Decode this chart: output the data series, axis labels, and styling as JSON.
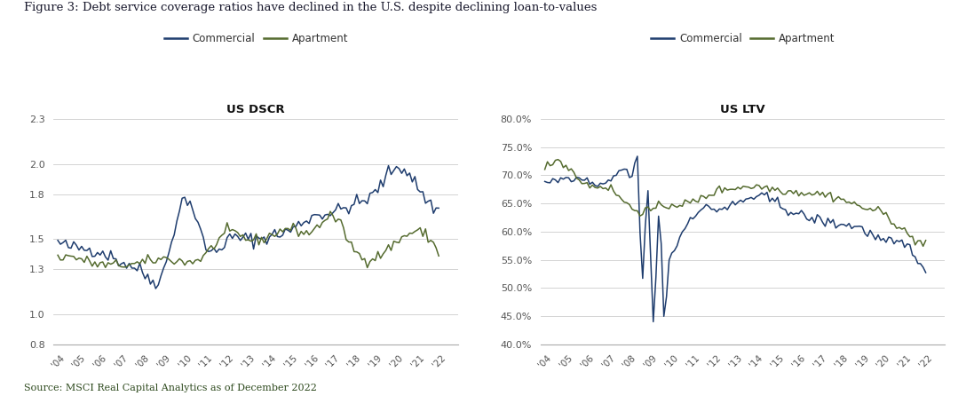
{
  "title": "Figure 3: Debt service coverage ratios have declined in the U.S. despite declining loan-to-values",
  "source": "Source: MSCI Real Capital Analytics as of December 2022",
  "commercial_color": "#1f3d6e",
  "apartment_color": "#556b2f",
  "dscr_title": "US DSCR",
  "ltv_title": "US LTV",
  "years": [
    2004,
    2005,
    2006,
    2007,
    2008,
    2009,
    2010,
    2011,
    2012,
    2013,
    2014,
    2015,
    2016,
    2017,
    2018,
    2019,
    2020,
    2021,
    2022
  ],
  "dscr_commercial": [
    1.48,
    1.44,
    1.42,
    1.35,
    1.28,
    1.29,
    1.77,
    1.45,
    1.49,
    1.5,
    1.52,
    1.56,
    1.65,
    1.68,
    1.73,
    1.81,
    1.98,
    1.85,
    1.7
  ],
  "dscr_apartment": [
    1.38,
    1.37,
    1.33,
    1.33,
    1.34,
    1.37,
    1.35,
    1.4,
    1.54,
    1.5,
    1.52,
    1.57,
    1.55,
    1.65,
    1.43,
    1.38,
    1.48,
    1.55,
    1.4
  ],
  "ltv_commercial": [
    0.69,
    0.692,
    0.689,
    0.685,
    0.7,
    0.555,
    0.56,
    0.63,
    0.64,
    0.648,
    0.662,
    0.65,
    0.63,
    0.62,
    0.613,
    0.605,
    0.582,
    0.577,
    0.52
  ],
  "ltv_apartment": [
    0.71,
    0.718,
    0.683,
    0.678,
    0.645,
    0.638,
    0.648,
    0.652,
    0.67,
    0.678,
    0.68,
    0.675,
    0.67,
    0.667,
    0.658,
    0.643,
    0.632,
    0.6,
    0.58
  ],
  "dscr_ylim": [
    0.8,
    2.3
  ],
  "dscr_yticks": [
    0.8,
    1.0,
    1.3,
    1.5,
    1.8,
    2.0,
    2.3
  ],
  "ltv_ylim": [
    0.4,
    0.8
  ],
  "ltv_yticks": [
    0.4,
    0.45,
    0.5,
    0.55,
    0.6,
    0.65,
    0.7,
    0.75,
    0.8
  ],
  "background_color": "#ffffff",
  "grid_color": "#cccccc",
  "title_color": "#1a1a2e",
  "source_color": "#2e4a1e",
  "tick_label_color": "#555555"
}
